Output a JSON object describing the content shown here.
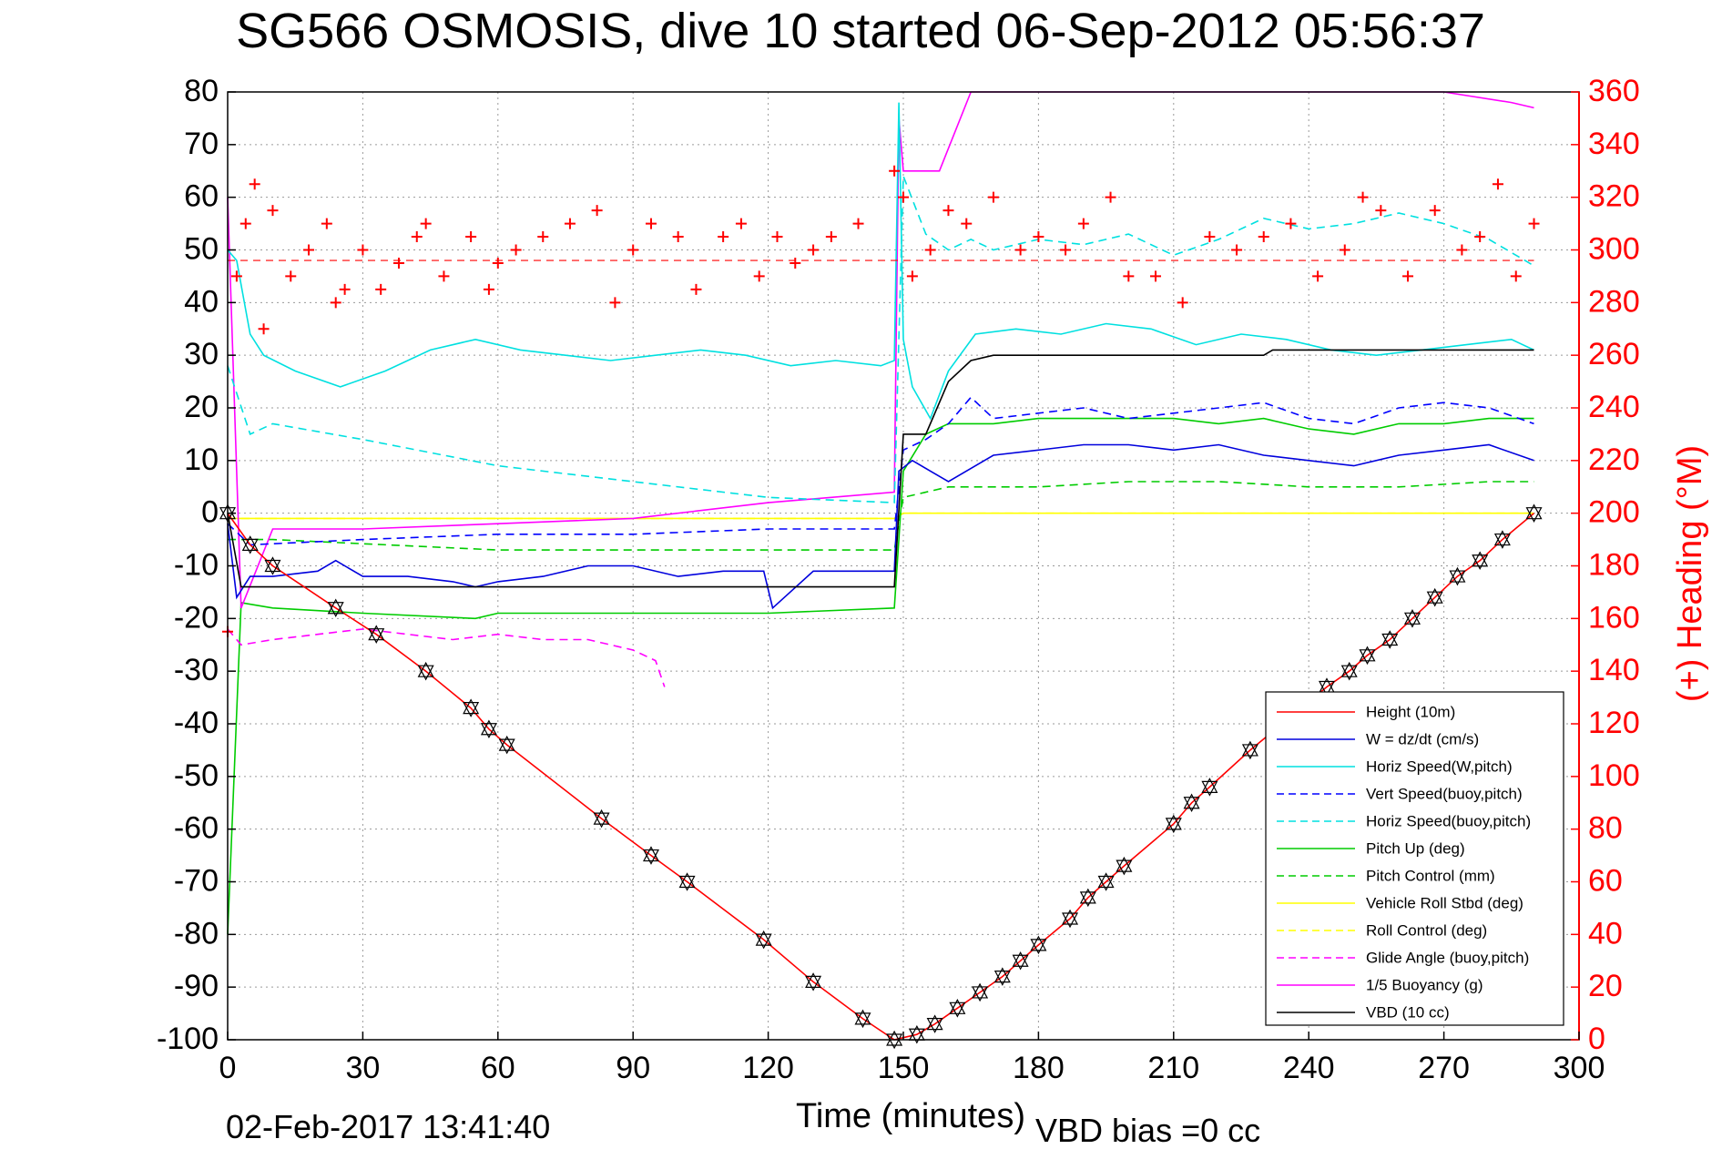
{
  "header": {
    "title": "SG566 OSMOSIS, dive 10 started 06-Sep-2012 05:56:37",
    "timestamp": "02-Feb-2017 13:41:40",
    "vbd_bias": "VBD bias =0 cc"
  },
  "chart_data": {
    "type": "line",
    "title": "SG566 OSMOSIS, dive 10 started 06-Sep-2012 05:56:37",
    "xlabel": "Time (minutes)",
    "ylabel": "",
    "y2label": "(+) Heading (°M)",
    "xlim": [
      0,
      300
    ],
    "ylim": [
      -100,
      80
    ],
    "y2lim": [
      0,
      360
    ],
    "xticks": [
      0,
      30,
      60,
      90,
      120,
      150,
      180,
      210,
      240,
      270,
      300
    ],
    "yticks": [
      -100,
      -90,
      -80,
      -70,
      -60,
      -50,
      -40,
      -30,
      -20,
      -10,
      0,
      10,
      20,
      30,
      40,
      50,
      60,
      70,
      80
    ],
    "y2ticks": [
      0,
      20,
      40,
      60,
      80,
      100,
      120,
      140,
      160,
      180,
      200,
      220,
      240,
      260,
      280,
      300,
      320,
      340,
      360
    ],
    "grid": true,
    "legend_position": "bottom-right",
    "series": [
      {
        "name": "Height (10m)",
        "color": "#ff0000",
        "style": "solid",
        "x": [
          0,
          5,
          10,
          24,
          33,
          44,
          54,
          58,
          62,
          83,
          94,
          102,
          119,
          130,
          141,
          148,
          153,
          157,
          162,
          167,
          172,
          176,
          180,
          187,
          191,
          195,
          199,
          210,
          214,
          218,
          227,
          244,
          249,
          253,
          258,
          263,
          268,
          273,
          278,
          283,
          290
        ],
        "y": [
          0,
          -6,
          -10,
          -18,
          -23,
          -30,
          -37,
          -41,
          -44,
          -58,
          -65,
          -70,
          -81,
          -89,
          -96,
          -100,
          -99,
          -97,
          -94,
          -91,
          -88,
          -85,
          -82,
          -77,
          -73,
          -70,
          -67,
          -59,
          -55,
          -52,
          -45,
          -33,
          -30,
          -27,
          -24,
          -20,
          -16,
          -12,
          -9,
          -5,
          0
        ]
      },
      {
        "name": "W = dz/dt (cm/s)",
        "color": "#0000dd",
        "style": "solid",
        "x": [
          0,
          2,
          5,
          10,
          20,
          24,
          30,
          40,
          50,
          55,
          60,
          70,
          80,
          90,
          100,
          110,
          119,
          121,
          130,
          140,
          148,
          149,
          152,
          156,
          160,
          170,
          180,
          190,
          200,
          210,
          220,
          230,
          240,
          250,
          260,
          270,
          280,
          290
        ],
        "y": [
          -2,
          -16,
          -12,
          -12,
          -11,
          -9,
          -12,
          -12,
          -13,
          -14,
          -13,
          -12,
          -10,
          -10,
          -12,
          -11,
          -11,
          -18,
          -11,
          -11,
          -11,
          8,
          10,
          8,
          6,
          11,
          12,
          13,
          13,
          12,
          13,
          11,
          10,
          9,
          11,
          12,
          13,
          10
        ]
      },
      {
        "name": "Horiz Speed(W,pitch)",
        "color": "#00e0e0",
        "style": "solid",
        "x": [
          0,
          2,
          5,
          8,
          15,
          25,
          35,
          45,
          55,
          65,
          75,
          85,
          95,
          105,
          115,
          125,
          135,
          145,
          148,
          149,
          150,
          152,
          156,
          160,
          166,
          175,
          185,
          195,
          205,
          215,
          225,
          235,
          245,
          255,
          265,
          275,
          285,
          290
        ],
        "y": [
          50,
          48,
          34,
          30,
          27,
          24,
          27,
          31,
          33,
          31,
          30,
          29,
          30,
          31,
          30,
          28,
          29,
          28,
          29,
          78,
          33,
          24,
          18,
          27,
          34,
          35,
          34,
          36,
          35,
          32,
          34,
          33,
          31,
          30,
          31,
          32,
          33,
          31
        ]
      },
      {
        "name": "Vert Speed(buoy,pitch)",
        "color": "#0000ff",
        "style": "dashed",
        "x": [
          0,
          5,
          30,
          60,
          90,
          120,
          148,
          150,
          155,
          160,
          165,
          170,
          180,
          190,
          200,
          210,
          220,
          230,
          240,
          250,
          260,
          270,
          280,
          290
        ],
        "y": [
          -2,
          -6,
          -5,
          -4,
          -4,
          -3,
          -3,
          12,
          14,
          17,
          22,
          18,
          19,
          20,
          18,
          19,
          20,
          21,
          18,
          17,
          20,
          21,
          20,
          17
        ]
      },
      {
        "name": "Horiz Speed(buoy,pitch)",
        "color": "#00e0e0",
        "style": "dashed",
        "x": [
          0,
          5,
          10,
          30,
          60,
          90,
          120,
          148,
          150,
          155,
          160,
          165,
          170,
          180,
          190,
          200,
          210,
          220,
          230,
          240,
          250,
          260,
          270,
          280,
          290
        ],
        "y": [
          28,
          15,
          17,
          14,
          9,
          6,
          3,
          2,
          64,
          53,
          50,
          52,
          50,
          52,
          51,
          53,
          49,
          52,
          56,
          54,
          55,
          57,
          55,
          52,
          47
        ]
      },
      {
        "name": "Pitch Up (deg)",
        "color": "#00cc00",
        "style": "solid",
        "x": [
          0,
          3,
          10,
          30,
          55,
          60,
          90,
          120,
          148,
          150,
          155,
          160,
          170,
          180,
          190,
          200,
          210,
          220,
          230,
          240,
          250,
          260,
          270,
          280,
          290
        ],
        "y": [
          -80,
          -17,
          -18,
          -19,
          -20,
          -19,
          -19,
          -19,
          -18,
          8,
          15,
          17,
          17,
          18,
          18,
          18,
          18,
          17,
          18,
          16,
          15,
          17,
          17,
          18,
          18
        ]
      },
      {
        "name": "Pitch Control (mm)",
        "color": "#00cc00",
        "style": "dashed",
        "x": [
          0,
          10,
          60,
          120,
          148,
          150,
          160,
          170,
          180,
          200,
          220,
          240,
          260,
          280,
          290
        ],
        "y": [
          -5,
          -5,
          -7,
          -7,
          -7,
          3,
          5,
          5,
          5,
          6,
          6,
          5,
          5,
          6,
          6
        ]
      },
      {
        "name": "Vehicle Roll Stbd (deg)",
        "color": "#ffff00",
        "style": "solid",
        "x": [
          0,
          30,
          60,
          90,
          120,
          148,
          150,
          180,
          210,
          240,
          270,
          290
        ],
        "y": [
          -1,
          -1,
          -1,
          -1,
          -1,
          -1,
          0,
          0,
          0,
          0,
          0,
          0
        ]
      },
      {
        "name": "Roll Control (deg)",
        "color": "#ffff00",
        "style": "dashed",
        "x": [
          0,
          30,
          60,
          90,
          120,
          148,
          150,
          180,
          210,
          240,
          270,
          290
        ],
        "y": [
          -1,
          -1,
          -1,
          -1,
          -1,
          -1,
          0,
          0,
          0,
          0,
          0,
          0
        ]
      },
      {
        "name": "Glide Angle (buoy,pitch)",
        "color": "#ff00ff",
        "style": "dashed",
        "x": [
          0,
          3,
          10,
          20,
          30,
          40,
          50,
          60,
          70,
          80,
          90,
          95,
          97
        ],
        "y": [
          -22,
          -25,
          -24,
          -23,
          -22,
          -23,
          -24,
          -23,
          -24,
          -24,
          -26,
          -28,
          -33
        ]
      },
      {
        "name": "1/5 Buoyancy (g)",
        "color": "#ff00ff",
        "style": "solid",
        "x": [
          0,
          3,
          10,
          30,
          60,
          90,
          120,
          148,
          149,
          150,
          156,
          158,
          165,
          270,
          285,
          290
        ],
        "y": [
          60,
          -18,
          -3,
          -3,
          -2,
          -1,
          2,
          4,
          75,
          65,
          65,
          65,
          80,
          80,
          78,
          77
        ]
      },
      {
        "name": "VBD (10 cc)",
        "color": "#000000",
        "style": "solid",
        "x": [
          0,
          3,
          10,
          30,
          60,
          90,
          120,
          148,
          150,
          152,
          155,
          160,
          165,
          170,
          200,
          230,
          232,
          290
        ],
        "y": [
          0,
          -14,
          -14,
          -14,
          -14,
          -14,
          -14,
          -14,
          15,
          15,
          15,
          25,
          29,
          30,
          30,
          30,
          31,
          31
        ]
      }
    ],
    "heading_series": {
      "name": "(+) Heading (°M)",
      "color": "#ff0000",
      "marker": "+",
      "x": [
        0,
        2,
        4,
        6,
        8,
        10,
        14,
        18,
        22,
        24,
        26,
        30,
        34,
        38,
        42,
        44,
        48,
        54,
        58,
        60,
        64,
        70,
        76,
        82,
        86,
        90,
        94,
        100,
        104,
        110,
        114,
        118,
        122,
        126,
        130,
        134,
        140,
        148,
        150,
        152,
        156,
        160,
        164,
        170,
        176,
        180,
        186,
        190,
        196,
        200,
        206,
        212,
        218,
        224,
        230,
        236,
        242,
        248,
        252,
        256,
        262,
        268,
        274,
        278,
        282,
        286,
        290
      ],
      "y": [
        155,
        290,
        310,
        325,
        270,
        315,
        290,
        300,
        310,
        280,
        285,
        300,
        285,
        295,
        305,
        310,
        290,
        305,
        285,
        295,
        300,
        305,
        310,
        315,
        280,
        300,
        310,
        305,
        285,
        305,
        310,
        290,
        305,
        295,
        300,
        305,
        310,
        330,
        320,
        290,
        300,
        315,
        310,
        320,
        300,
        305,
        300,
        310,
        320,
        290,
        290,
        280,
        305,
        300,
        305,
        310,
        290,
        300,
        320,
        315,
        290,
        315,
        300,
        305,
        325,
        290,
        310
      ]
    },
    "reference_line": {
      "value": 296,
      "axis": "right",
      "color": "#ff0000",
      "style": "dashed"
    }
  }
}
